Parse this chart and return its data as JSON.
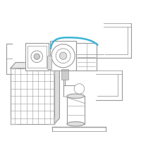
{
  "bg_color": "#ffffff",
  "part_color": "#999999",
  "part_color2": "#bbbbbb",
  "highlight_color": "#3ab5d5",
  "lw": 0.8,
  "hlw": 1.8,
  "fig_size": [
    2.0,
    2.0
  ],
  "dpi": 100
}
